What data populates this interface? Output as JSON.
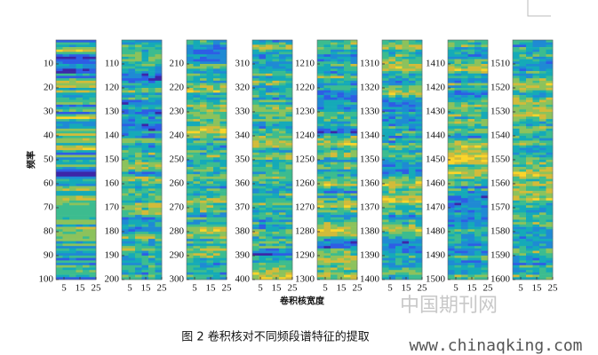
{
  "chart_data": {
    "type": "heatmap",
    "ylabel": "频率",
    "xlabel": "卷积核宽度",
    "caption": "图 2 卷积核对不同频段谱特征的提取",
    "xlim": [
      0,
      25
    ],
    "xticks": [
      5,
      15,
      25
    ],
    "panels": [
      {
        "ylim": [
          0,
          100
        ],
        "yticks": [
          10,
          20,
          30,
          40,
          50,
          60,
          70,
          80,
          90,
          100
        ]
      },
      {
        "ylim": [
          100,
          200
        ],
        "yticks": [
          110,
          120,
          130,
          140,
          150,
          160,
          170,
          180,
          190,
          200
        ]
      },
      {
        "ylim": [
          200,
          300
        ],
        "yticks": [
          210,
          220,
          230,
          240,
          250,
          260,
          270,
          280,
          290,
          300
        ]
      },
      {
        "ylim": [
          300,
          400
        ],
        "yticks": [
          310,
          320,
          330,
          340,
          350,
          360,
          370,
          380,
          390,
          400
        ]
      },
      {
        "ylim": [
          1200,
          1300
        ],
        "yticks": [
          1210,
          1220,
          1230,
          1240,
          1250,
          1260,
          1270,
          1280,
          1290,
          1300
        ]
      },
      {
        "ylim": [
          1300,
          1400
        ],
        "yticks": [
          1310,
          1320,
          1330,
          1340,
          1350,
          1360,
          1370,
          1380,
          1390,
          1400
        ]
      },
      {
        "ylim": [
          1400,
          1500
        ],
        "yticks": [
          1410,
          1420,
          1430,
          1440,
          1450,
          1460,
          1470,
          1480,
          1490,
          1500
        ]
      },
      {
        "ylim": [
          1500,
          1600
        ],
        "yticks": [
          1510,
          1520,
          1530,
          1540,
          1550,
          1560,
          1570,
          1580,
          1590,
          1600
        ]
      }
    ]
  },
  "watermark": {
    "site_cn": "中国期刊网",
    "site_url": "www.chinaqking.com"
  }
}
